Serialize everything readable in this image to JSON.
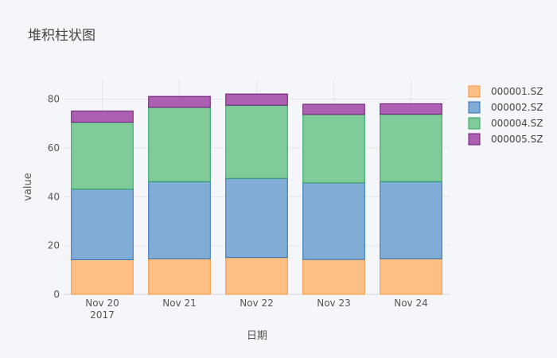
{
  "chart_data": {
    "type": "bar",
    "stacked": true,
    "title": "堆积柱状图",
    "xlabel": "日期",
    "ylabel": "value",
    "categories": [
      "Nov 20",
      "Nov 21",
      "Nov 22",
      "Nov 23",
      "Nov 24"
    ],
    "category_sublabels": [
      "2017",
      "",
      "",
      "",
      ""
    ],
    "ylim": [
      0,
      88
    ],
    "yticks": [
      0,
      20,
      40,
      60,
      80
    ],
    "grid": true,
    "legend_position": "top-right",
    "series": [
      {
        "name": "000001.SZ",
        "values": [
          14.2,
          14.6,
          15.1,
          14.3,
          14.6
        ],
        "color": "#fdbf84",
        "edge": "#f2963a"
      },
      {
        "name": "000002.SZ",
        "values": [
          28.9,
          31.6,
          32.4,
          31.4,
          31.6
        ],
        "color": "#80acd6",
        "edge": "#2a6fb8"
      },
      {
        "name": "000004.SZ",
        "values": [
          27.4,
          30.4,
          30.0,
          28.0,
          27.6
        ],
        "color": "#7fcb9a",
        "edge": "#2ca25f"
      },
      {
        "name": "000005.SZ",
        "values": [
          4.6,
          4.5,
          4.6,
          4.2,
          4.3
        ],
        "color": "#ad5fb1",
        "edge": "#6a1b7a"
      }
    ]
  }
}
